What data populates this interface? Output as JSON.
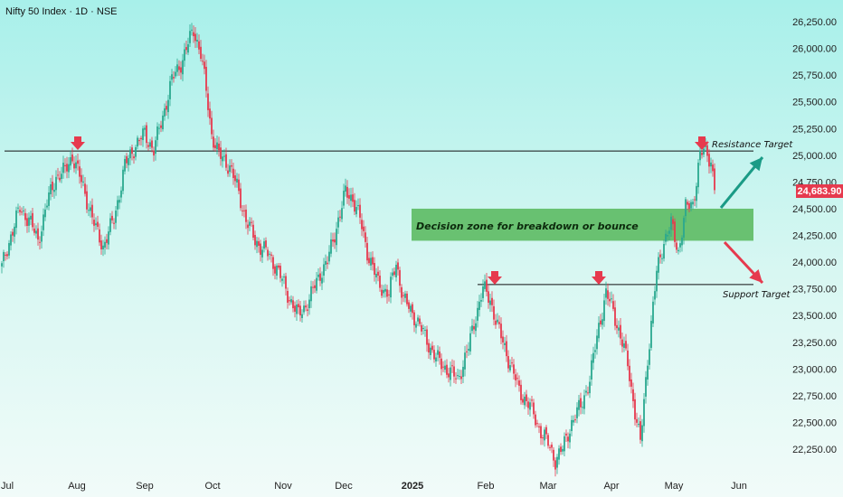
{
  "title": "Nifty 50 Index · 1D · NSE",
  "colors": {
    "up": "#2aa88f",
    "down": "#e63a4e",
    "zone": "#5dbb63",
    "arrow_up": "#1a9b86",
    "arrow_down": "#e63a4e",
    "price_bg": "#e63a4e"
  },
  "annotations": {
    "resistance_label": "Resistance Target",
    "support_label": "Support Target",
    "zone_label": "Decision zone for breakdown or bounce",
    "current_price": "24,683.90"
  },
  "chart_data": {
    "type": "candlestick",
    "y_ticks": [
      "26,250.00",
      "26,000.00",
      "25,750.00",
      "25,500.00",
      "25,250.00",
      "25,000.00",
      "24,750.00",
      "24,500.00",
      "24,250.00",
      "24,000.00",
      "23,750.00",
      "23,500.00",
      "23,250.00",
      "23,000.00",
      "22,750.00",
      "22,500.00",
      "22,250.00"
    ],
    "x_ticks": [
      "Jul",
      "Aug",
      "Sep",
      "Oct",
      "Nov",
      "Dec",
      "2025",
      "Feb",
      "Mar",
      "Apr",
      "May",
      "Jun"
    ],
    "ylim": [
      22050,
      26400
    ],
    "resistance": 25040,
    "support": 23790,
    "decision_zone": [
      24200,
      24500
    ],
    "last_price": 24683.9,
    "anchors": [
      [
        0,
        23950
      ],
      [
        5,
        24250
      ],
      [
        10,
        24500
      ],
      [
        15,
        24400
      ],
      [
        20,
        24200
      ],
      [
        25,
        24550
      ],
      [
        30,
        24800
      ],
      [
        35,
        24850
      ],
      [
        39,
        25000
      ],
      [
        45,
        24700
      ],
      [
        52,
        24300
      ],
      [
        56,
        24150
      ],
      [
        62,
        24400
      ],
      [
        68,
        24900
      ],
      [
        74,
        25100
      ],
      [
        79,
        25200
      ],
      [
        84,
        25050
      ],
      [
        88,
        25300
      ],
      [
        94,
        25700
      ],
      [
        100,
        25900
      ],
      [
        106,
        26180
      ],
      [
        110,
        25950
      ],
      [
        113,
        25600
      ],
      [
        116,
        25200
      ],
      [
        120,
        25000
      ],
      [
        126,
        24900
      ],
      [
        130,
        24700
      ],
      [
        135,
        24400
      ],
      [
        140,
        24200
      ],
      [
        146,
        24100
      ],
      [
        152,
        23950
      ],
      [
        158,
        23700
      ],
      [
        164,
        23500
      ],
      [
        170,
        23650
      ],
      [
        176,
        23900
      ],
      [
        180,
        24000
      ],
      [
        186,
        24400
      ],
      [
        190,
        24650
      ],
      [
        194,
        24600
      ],
      [
        198,
        24400
      ],
      [
        202,
        24100
      ],
      [
        208,
        23800
      ],
      [
        214,
        23700
      ],
      [
        218,
        24000
      ],
      [
        222,
        23650
      ],
      [
        228,
        23500
      ],
      [
        234,
        23300
      ],
      [
        240,
        23100
      ],
      [
        246,
        23000
      ],
      [
        252,
        22900
      ],
      [
        258,
        23200
      ],
      [
        262,
        23500
      ],
      [
        266,
        23750
      ],
      [
        270,
        23650
      ],
      [
        274,
        23400
      ],
      [
        280,
        23100
      ],
      [
        286,
        22800
      ],
      [
        292,
        22650
      ],
      [
        297,
        22450
      ],
      [
        302,
        22300
      ],
      [
        306,
        22150
      ],
      [
        310,
        22250
      ],
      [
        315,
        22500
      ],
      [
        320,
        22650
      ],
      [
        325,
        22900
      ],
      [
        330,
        23400
      ],
      [
        334,
        23700
      ],
      [
        338,
        23550
      ],
      [
        342,
        23300
      ],
      [
        346,
        23050
      ],
      [
        350,
        22600
      ],
      [
        353,
        22300
      ],
      [
        357,
        23100
      ],
      [
        362,
        23900
      ],
      [
        366,
        24200
      ],
      [
        370,
        24350
      ],
      [
        374,
        24100
      ],
      [
        378,
        24500
      ],
      [
        382,
        24550
      ],
      [
        386,
        25000
      ],
      [
        389,
        25050
      ],
      [
        392,
        24950
      ],
      [
        394,
        24700
      ]
    ]
  }
}
